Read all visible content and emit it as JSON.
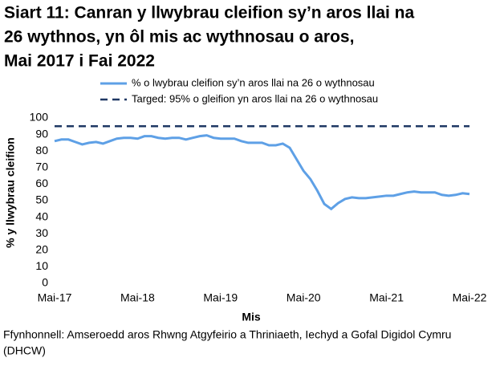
{
  "chart_data": {
    "type": "line",
    "title": [
      "Siart 11: Canran y llwybrau cleifion sy’n aros llai na",
      "26 wythnos, yn ôl mis ac wythnosau o aros,",
      "Mai 2017 i Fai 2022"
    ],
    "x_label": "Mis",
    "y_label": "% y llwybrau cleifion",
    "source": [
      "Ffynhonnell: Amseroedd aros Rhwng Atgyfeirio a Thriniaeth, Iechyd a Gofal Digidol Cymru",
      "(DHCW)"
    ],
    "categories": [
      "Mai-17",
      null,
      null,
      null,
      null,
      null,
      null,
      null,
      null,
      null,
      null,
      null,
      "Mai-18",
      null,
      null,
      null,
      null,
      null,
      null,
      null,
      null,
      null,
      null,
      null,
      "Mai-19",
      null,
      null,
      null,
      null,
      null,
      null,
      null,
      null,
      null,
      null,
      null,
      "Mai-20",
      null,
      null,
      null,
      null,
      null,
      null,
      null,
      null,
      null,
      null,
      null,
      "Mai-21",
      null,
      null,
      null,
      null,
      null,
      null,
      null,
      null,
      null,
      null,
      null,
      "Mai-22"
    ],
    "series": [
      {
        "name": "% o lwybrau cleifion sy’n aros llai na 26 o wythnosau",
        "color": "#5ea0e6",
        "dashed": false,
        "values": [
          86,
          87,
          87,
          85.5,
          84,
          85,
          85.5,
          84.5,
          86,
          87.5,
          88,
          88,
          87.5,
          89,
          89,
          88,
          87.5,
          88,
          88,
          87,
          88,
          89,
          89.5,
          88,
          87.5,
          87.5,
          87.5,
          86,
          85,
          85,
          85,
          83.5,
          83.5,
          84.5,
          82,
          75,
          68,
          63,
          56,
          48,
          45,
          48.5,
          51,
          52,
          51.5,
          51.5,
          52,
          52.5,
          53,
          53,
          54,
          55,
          55.5,
          55,
          55,
          55,
          53.5,
          53,
          53.5,
          54.5,
          54
        ]
      },
      {
        "name": "Targed: 95% o gleifion yn aros llai na 26 o wythnosau",
        "color": "#1f3864",
        "dashed": true,
        "values": [
          95,
          95,
          95,
          95,
          95,
          95,
          95,
          95,
          95,
          95,
          95,
          95,
          95,
          95,
          95,
          95,
          95,
          95,
          95,
          95,
          95,
          95,
          95,
          95,
          95,
          95,
          95,
          95,
          95,
          95,
          95,
          95,
          95,
          95,
          95,
          95,
          95,
          95,
          95,
          95,
          95,
          95,
          95,
          95,
          95,
          95,
          95,
          95,
          95,
          95,
          95,
          95,
          95,
          95,
          95,
          95,
          95,
          95,
          95,
          95,
          95
        ]
      }
    ],
    "ylim": [
      0,
      100
    ],
    "yticks": [
      0,
      10,
      20,
      30,
      40,
      50,
      60,
      70,
      80,
      90,
      100
    ],
    "grid": false
  }
}
